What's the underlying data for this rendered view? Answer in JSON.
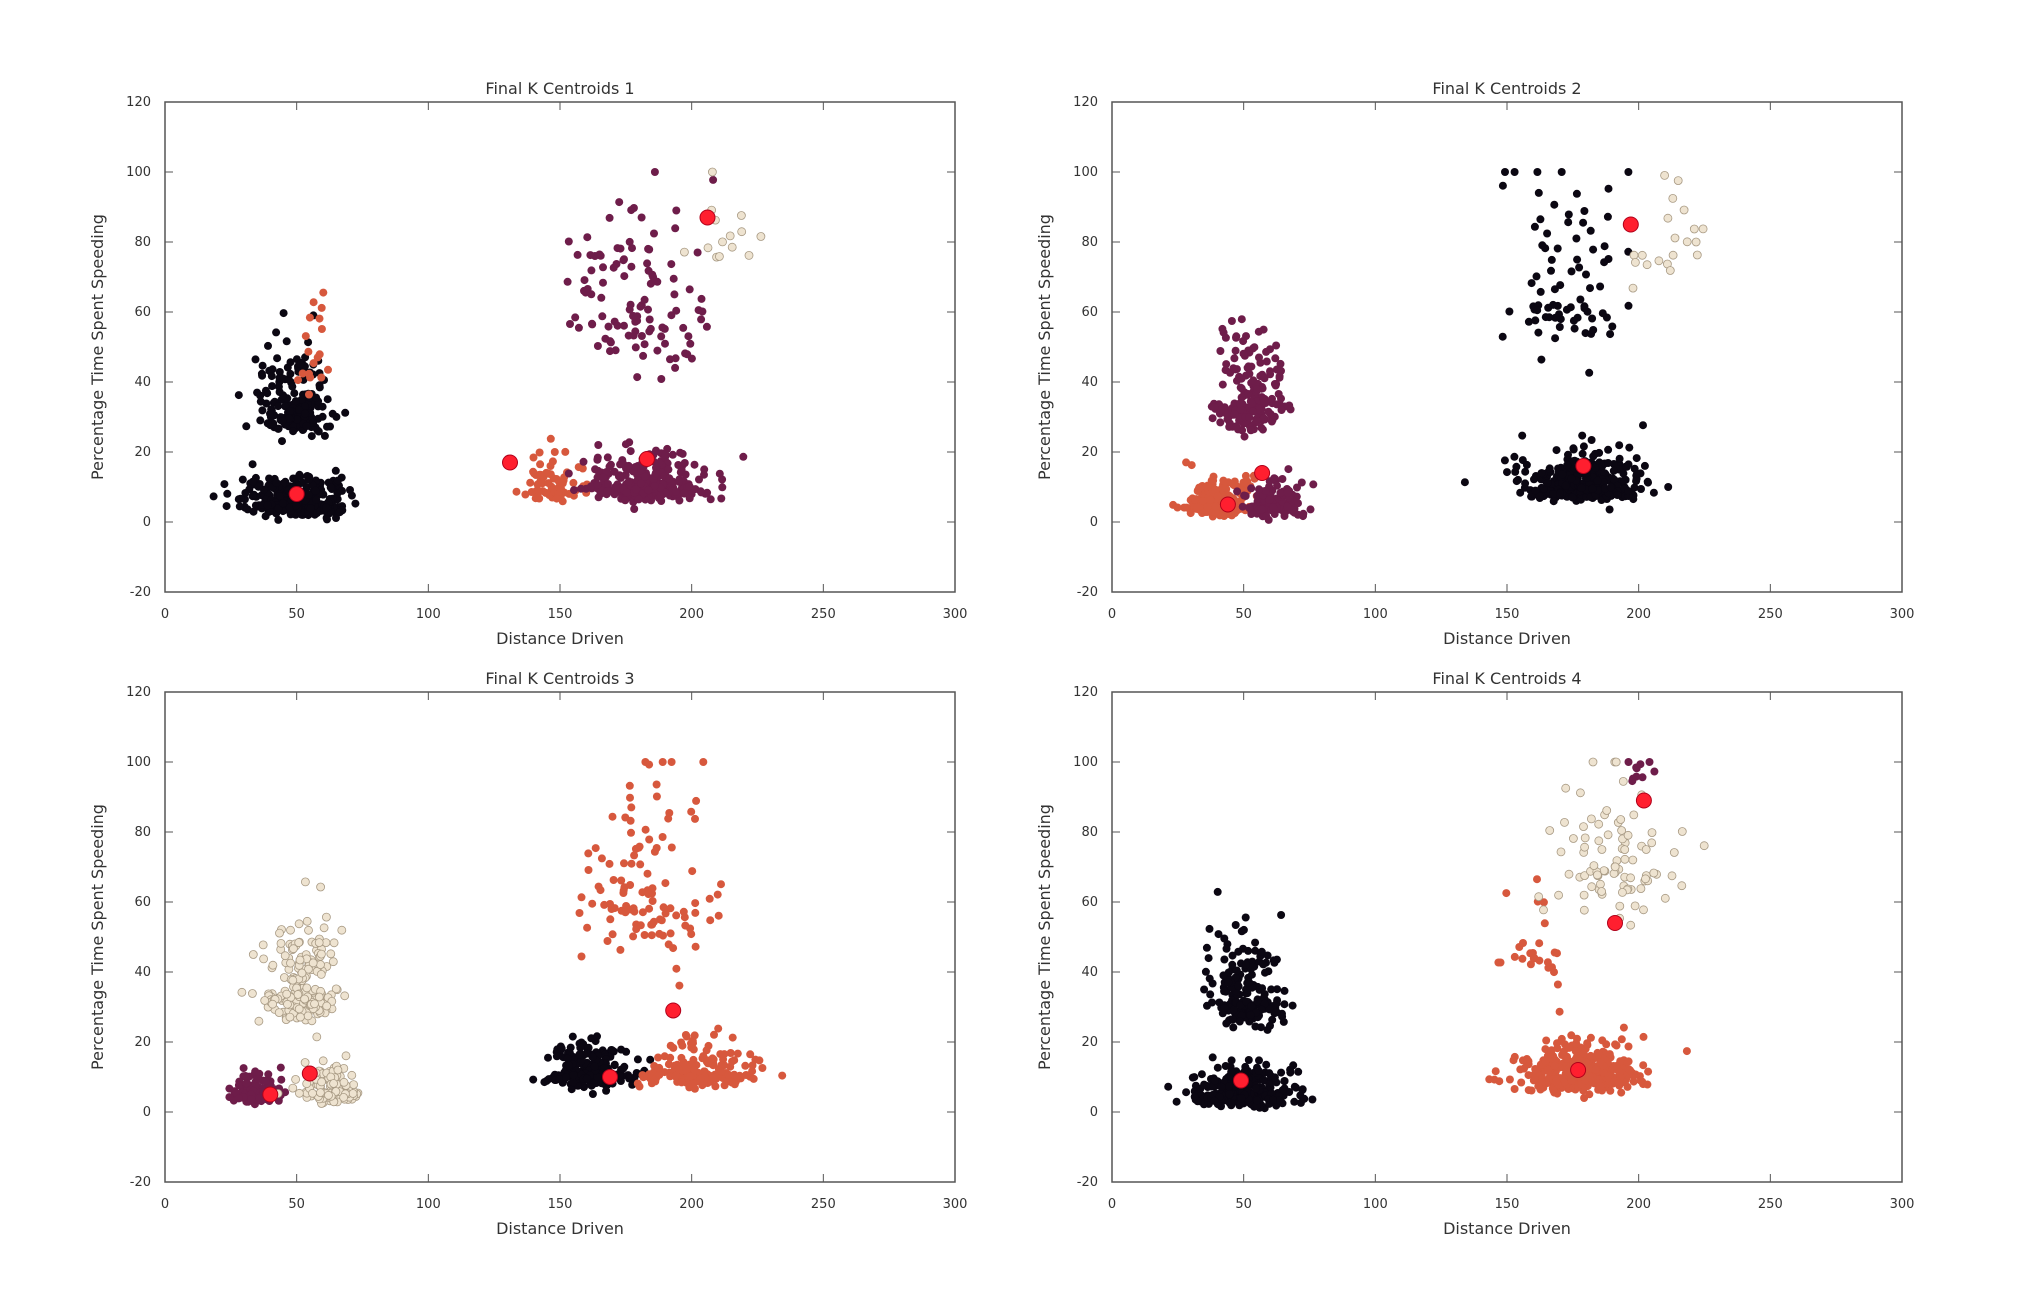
{
  "colors": {
    "black": "#0b0712",
    "purple": "#6e1d4a",
    "orange": "#d7583d",
    "cream": "#eee3d0",
    "centroid": "#ff1f2f"
  },
  "chart_data": [
    {
      "type": "scatter",
      "title": "Final K Centroids 1",
      "xlabel": "Distance Driven",
      "ylabel": "Percentage Time Spent Speeding",
      "xlim": [
        0,
        300
      ],
      "ylim": [
        -20,
        120
      ],
      "xticks": [
        "0",
        "50",
        "100",
        "150",
        "200",
        "250",
        "300"
      ],
      "yticks": [
        "-20",
        "0",
        "20",
        "40",
        "60",
        "80",
        "100",
        "120"
      ],
      "clusters": [
        {
          "color": "black",
          "x_center": 50,
          "x_spread": 16,
          "y_center": 5,
          "y_spread": 4,
          "n": 320
        },
        {
          "color": "black",
          "x_center": 50,
          "x_spread": 11,
          "y_center": 32,
          "y_spread": 10,
          "n": 190
        },
        {
          "color": "orange",
          "x_center": 58,
          "x_spread": 6,
          "y_center": 45,
          "y_spread": 12,
          "n": 18
        },
        {
          "color": "orange",
          "x_center": 147,
          "x_spread": 9,
          "y_center": 9,
          "y_spread": 5,
          "n": 70
        },
        {
          "color": "purple",
          "x_center": 183,
          "x_spread": 18,
          "y_center": 10,
          "y_spread": 5,
          "n": 330
        },
        {
          "color": "purple",
          "x_center": 180,
          "x_spread": 22,
          "y_center": 60,
          "y_spread": 22,
          "n": 110
        },
        {
          "color": "cream",
          "x_center": 212,
          "x_spread": 12,
          "y_center": 82,
          "y_spread": 10,
          "n": 14
        }
      ],
      "centroids": [
        [
          50,
          8
        ],
        [
          131,
          17
        ],
        [
          183,
          18
        ],
        [
          206,
          87
        ]
      ]
    },
    {
      "type": "scatter",
      "title": "Final K Centroids 2",
      "xlabel": "Distance Driven",
      "ylabel": "Percentage Time Spent Speeding",
      "xlim": [
        0,
        300
      ],
      "ylim": [
        -20,
        120
      ],
      "xticks": [
        "0",
        "50",
        "100",
        "150",
        "200",
        "250",
        "300"
      ],
      "yticks": [
        "-20",
        "0",
        "20",
        "40",
        "60",
        "80",
        "100",
        "120"
      ],
      "clusters": [
        {
          "color": "orange",
          "x_center": 40,
          "x_spread": 11,
          "y_center": 5,
          "y_spread": 4,
          "n": 220
        },
        {
          "color": "purple",
          "x_center": 62,
          "x_spread": 9,
          "y_center": 5,
          "y_spread": 4,
          "n": 130
        },
        {
          "color": "purple",
          "x_center": 52,
          "x_spread": 11,
          "y_center": 34,
          "y_spread": 11,
          "n": 200
        },
        {
          "color": "black",
          "x_center": 178,
          "x_spread": 20,
          "y_center": 10,
          "y_spread": 5,
          "n": 380
        },
        {
          "color": "black",
          "x_center": 172,
          "x_spread": 18,
          "y_center": 62,
          "y_spread": 20,
          "n": 80
        },
        {
          "color": "cream",
          "x_center": 210,
          "x_spread": 14,
          "y_center": 80,
          "y_spread": 14,
          "n": 20
        }
      ],
      "centroids": [
        [
          44,
          5
        ],
        [
          57,
          14
        ],
        [
          179,
          16
        ],
        [
          197,
          85
        ]
      ]
    },
    {
      "type": "scatter",
      "title": "Final K Centroids 3",
      "xlabel": "Distance Driven",
      "ylabel": "Percentage Time Spent Speeding",
      "xlim": [
        0,
        300
      ],
      "ylim": [
        -20,
        120
      ],
      "xticks": [
        "0",
        "50",
        "100",
        "150",
        "200",
        "250",
        "300"
      ],
      "yticks": [
        "-20",
        "0",
        "20",
        "40",
        "60",
        "80",
        "100",
        "120"
      ],
      "clusters": [
        {
          "color": "purple",
          "x_center": 35,
          "x_spread": 8,
          "y_center": 5,
          "y_spread": 3,
          "n": 150
        },
        {
          "color": "cream",
          "x_center": 62,
          "x_spread": 9,
          "y_center": 6,
          "y_spread": 4,
          "n": 130
        },
        {
          "color": "cream",
          "x_center": 52,
          "x_spread": 11,
          "y_center": 34,
          "y_spread": 11,
          "n": 210
        },
        {
          "color": "black",
          "x_center": 162,
          "x_spread": 14,
          "y_center": 11,
          "y_spread": 5,
          "n": 220
        },
        {
          "color": "orange",
          "x_center": 203,
          "x_spread": 16,
          "y_center": 11,
          "y_spread": 5,
          "n": 180
        },
        {
          "color": "orange",
          "x_center": 182,
          "x_spread": 22,
          "y_center": 60,
          "y_spread": 22,
          "n": 110
        }
      ],
      "centroids": [
        [
          40,
          5
        ],
        [
          55,
          11
        ],
        [
          169,
          10
        ],
        [
          193,
          29
        ]
      ]
    },
    {
      "type": "scatter",
      "title": "Final K Centroids 4",
      "xlabel": "Distance Driven",
      "ylabel": "Percentage Time Spent Speeding",
      "xlim": [
        0,
        300
      ],
      "ylim": [
        -20,
        120
      ],
      "xticks": [
        "0",
        "50",
        "100",
        "150",
        "200",
        "250",
        "300"
      ],
      "yticks": [
        "-20",
        "0",
        "20",
        "40",
        "60",
        "80",
        "100",
        "120"
      ],
      "clusters": [
        {
          "color": "black",
          "x_center": 50,
          "x_spread": 16,
          "y_center": 5,
          "y_spread": 4,
          "n": 320
        },
        {
          "color": "black",
          "x_center": 50,
          "x_spread": 11,
          "y_center": 32,
          "y_spread": 11,
          "n": 200
        },
        {
          "color": "orange",
          "x_center": 178,
          "x_spread": 20,
          "y_center": 10,
          "y_spread": 5,
          "n": 400
        },
        {
          "color": "orange",
          "x_center": 160,
          "x_spread": 14,
          "y_center": 45,
          "y_spread": 12,
          "n": 25
        },
        {
          "color": "cream",
          "x_center": 192,
          "x_spread": 22,
          "y_center": 70,
          "y_spread": 18,
          "n": 90
        },
        {
          "color": "purple",
          "x_center": 200,
          "x_spread": 10,
          "y_center": 96,
          "y_spread": 4,
          "n": 10
        }
      ],
      "centroids": [
        [
          49,
          9
        ],
        [
          177,
          12
        ],
        [
          191,
          54
        ],
        [
          202,
          89
        ]
      ]
    }
  ]
}
